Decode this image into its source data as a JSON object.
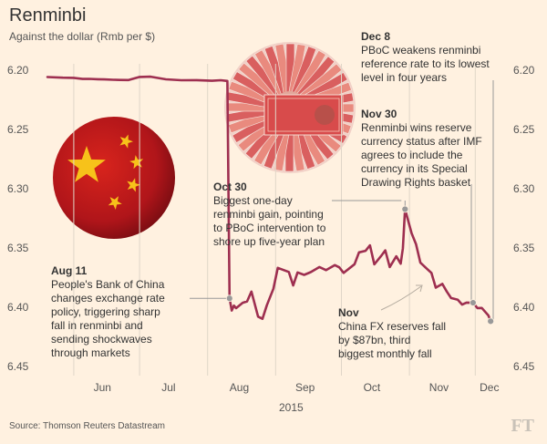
{
  "header": {
    "title": "Renminbi",
    "subtitle": "Against the dollar (Rmb per $)"
  },
  "chart_data": {
    "type": "line",
    "title": "Renminbi",
    "subtitle": "Against the dollar (Rmb per $)",
    "y_inverted": true,
    "ylim": [
      6.45,
      6.2
    ],
    "yticks": [
      "6.20",
      "6.25",
      "6.30",
      "6.35",
      "6.40",
      "6.45"
    ],
    "xticks": [
      "Jun",
      "Jul",
      "Aug",
      "Sep",
      "Oct",
      "Nov",
      "Dec"
    ],
    "x_year_label": "2015",
    "grid": "vertical",
    "series_color": "#9e2f50",
    "series": [
      {
        "dates": [
          "2015-05-20",
          "2015-05-27",
          "2015-06-01",
          "2015-06-05",
          "2015-06-08",
          "2015-06-12",
          "2015-06-15",
          "2015-06-19",
          "2015-06-22",
          "2015-06-26",
          "2015-07-01",
          "2015-07-06",
          "2015-07-13",
          "2015-07-20",
          "2015-07-27",
          "2015-08-03",
          "2015-08-07",
          "2015-08-10",
          "2015-08-11",
          "2015-08-12",
          "2015-08-13",
          "2015-08-14",
          "2015-08-17",
          "2015-08-19",
          "2015-08-21",
          "2015-08-24",
          "2015-08-26",
          "2015-08-28",
          "2015-08-31",
          "2015-09-02",
          "2015-09-07",
          "2015-09-09",
          "2015-09-11",
          "2015-09-14",
          "2015-09-17",
          "2015-09-21",
          "2015-09-24",
          "2015-09-28",
          "2015-09-30",
          "2015-10-02",
          "2015-10-07",
          "2015-10-09",
          "2015-10-12",
          "2015-10-14",
          "2015-10-16",
          "2015-10-19",
          "2015-10-21",
          "2015-10-23",
          "2015-10-26",
          "2015-10-28",
          "2015-10-29",
          "2015-10-30",
          "2015-11-02",
          "2015-11-04",
          "2015-11-06",
          "2015-11-09",
          "2015-11-11",
          "2015-11-13",
          "2015-11-16",
          "2015-11-18",
          "2015-11-20",
          "2015-11-23",
          "2015-11-25",
          "2015-11-27",
          "2015-11-30",
          "2015-12-02",
          "2015-12-04",
          "2015-12-07",
          "2015-12-08"
        ],
        "values": [
          6.2058,
          6.2063,
          6.2065,
          6.2074,
          6.2073,
          6.2076,
          6.2078,
          6.2081,
          6.2082,
          6.2083,
          6.2057,
          6.2055,
          6.2077,
          6.2085,
          6.2084,
          6.2089,
          6.2085,
          6.2091,
          6.3925,
          6.4028,
          6.3986,
          6.4008,
          6.3962,
          6.3951,
          6.3868,
          6.4079,
          6.4098,
          6.3983,
          6.3844,
          6.3668,
          6.3702,
          6.3816,
          6.3706,
          6.3727,
          6.3704,
          6.3661,
          6.3687,
          6.3645,
          6.3663,
          6.371,
          6.3637,
          6.3537,
          6.3524,
          6.3478,
          6.3638,
          6.357,
          6.352,
          6.3661,
          6.357,
          6.3632,
          6.3504,
          6.3173,
          6.3376,
          6.3467,
          6.3624,
          6.3676,
          6.371,
          6.3835,
          6.3803,
          6.3867,
          6.3922,
          6.3936,
          6.3978,
          6.3961,
          6.3962,
          6.4007,
          6.4006,
          6.4069,
          6.4118
        ]
      }
    ],
    "markers": [
      "2015-08-11",
      "2015-10-30",
      "2015-11-30",
      "2015-12-08"
    ],
    "annotations": [
      {
        "date": "Aug 11",
        "text": "People's Bank of China changes exchange rate policy, triggering sharp fall in renminbi and sending shockwaves through markets"
      },
      {
        "date": "Oct 30",
        "text": "Biggest one-day renminbi  gain, pointing to PBoC intervention to shore up five-year plan"
      },
      {
        "date": "Dec 8",
        "text": "PBoC weakens renminbi reference rate to its lowest level in four years"
      },
      {
        "date": "Nov 30",
        "text": "Renminbi wins reserve currency status after IMF agrees to include the currency in its Special Drawing Rights basket"
      },
      {
        "date": "Nov",
        "text": "China FX reserves fall by $87bn, third biggest monthly fall"
      }
    ]
  },
  "annotation_lines": {
    "aug11": [
      "People's Bank of China",
      "changes exchange rate",
      "policy, triggering sharp",
      "fall in renminbi and",
      "sending shockwaves",
      "through markets"
    ],
    "oct30": [
      "Biggest one-day",
      "renminbi  gain, pointing",
      "to PBoC intervention to",
      "shore up five-year plan"
    ],
    "dec8": [
      "PBoC weakens renminbi",
      "reference rate to its lowest",
      "level in four years"
    ],
    "nov30": [
      "Renminbi wins reserve",
      "currency status after IMF",
      "agrees to include the",
      "currency in its Special",
      "Drawing Rights basket"
    ],
    "nov": [
      "China FX reserves fall",
      "by $87bn, third",
      "biggest monthly fall"
    ]
  },
  "footer": {
    "source": "Source: Thomson Reuters Datastream",
    "logo": "FT"
  },
  "colors": {
    "background": "#fff1e0",
    "line": "#9e2f50",
    "grid": "#e0d6c8",
    "leader": "#999999"
  },
  "icons": [
    "china-flag-icon",
    "banknote-fan-icon"
  ]
}
